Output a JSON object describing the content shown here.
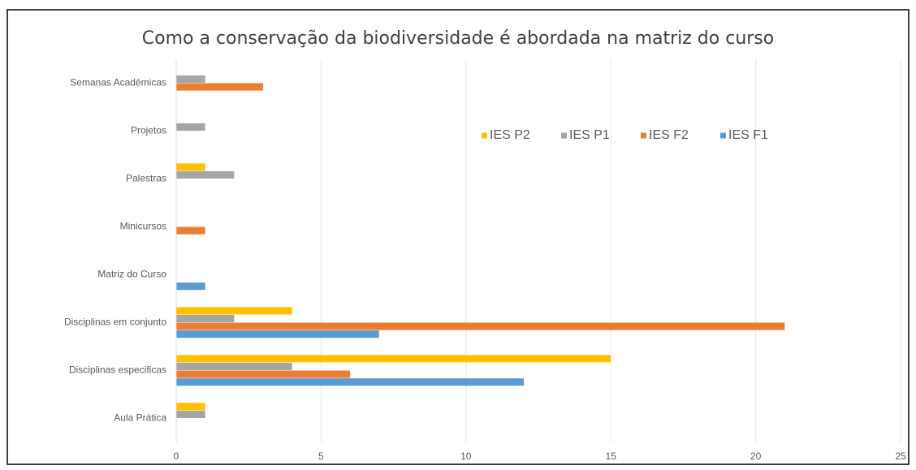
{
  "chart_data": {
    "type": "hbar",
    "title": "Como a conservação da biodiversidade é abordada na matriz do curso",
    "categories": [
      "Aula Prática",
      "Disciplinas especificas",
      "Disciplinas em conjunto",
      "Matriz do Curso",
      "Minicursos",
      "Palestras",
      "Projetos",
      "Semanas Acadêmicas"
    ],
    "series": [
      {
        "name": "IES P2",
        "color": "#ffc000",
        "values": [
          1,
          15,
          4,
          0,
          0,
          1,
          0,
          0
        ]
      },
      {
        "name": "IES P1",
        "color": "#a5a5a5",
        "values": [
          1,
          4,
          2,
          0,
          0,
          2,
          1,
          1
        ]
      },
      {
        "name": "IES F2",
        "color": "#ed7d31",
        "values": [
          0,
          6,
          21,
          0,
          1,
          0,
          0,
          3
        ]
      },
      {
        "name": "IES F1",
        "color": "#5b9bd5",
        "values": [
          0,
          12,
          7,
          1,
          0,
          0,
          0,
          0
        ]
      }
    ],
    "xlim": [
      0,
      25
    ],
    "xticks": [
      0,
      5,
      10,
      15,
      20,
      25
    ],
    "grid": true,
    "legend": "top-right"
  }
}
